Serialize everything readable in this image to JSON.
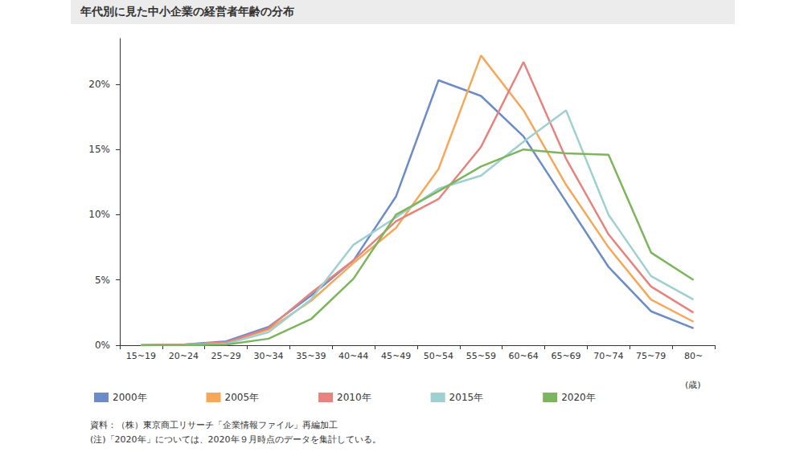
{
  "chart_data": {
    "type": "line",
    "title": "年代別に見た中小企業の経営者年齢の分布",
    "x_label": "(歳)",
    "source": "資料：（株）東京商工リサーチ「企業情報ファイル」再編加工",
    "note": "(注)「2020年」については、2020年９月時点のデータを集計している。",
    "categories": [
      "15~19",
      "20~24",
      "25~29",
      "30~34",
      "35~39",
      "40~44",
      "45~49",
      "50~54",
      "55~59",
      "60~64",
      "65~69",
      "70~74",
      "75~79",
      "80~"
    ],
    "series": [
      {
        "name": "2000年",
        "color": "#6b8cc7",
        "values": [
          0,
          0.05,
          0.3,
          1.4,
          3.8,
          6.5,
          11.4,
          20.3,
          19.1,
          16.0,
          11.0,
          6.0,
          2.6,
          1.3
        ]
      },
      {
        "name": "2005年",
        "color": "#f5a85a",
        "values": [
          0,
          0.05,
          0.2,
          1.2,
          3.4,
          6.3,
          9.0,
          13.5,
          22.2,
          18.0,
          12.3,
          7.5,
          3.5,
          1.8
        ]
      },
      {
        "name": "2010年",
        "color": "#e5847e",
        "values": [
          0,
          0.05,
          0.2,
          1.3,
          4.0,
          6.5,
          9.5,
          11.2,
          15.2,
          21.7,
          14.3,
          8.5,
          4.5,
          2.5
        ]
      },
      {
        "name": "2015年",
        "color": "#9dd0ce",
        "values": [
          0,
          0.02,
          0.1,
          1.0,
          3.5,
          7.7,
          9.8,
          12.0,
          13.0,
          15.6,
          18.0,
          10.0,
          5.3,
          3.5
        ]
      },
      {
        "name": "2020年",
        "color": "#7db55e",
        "values": [
          0,
          0,
          0.05,
          0.5,
          2.0,
          5.1,
          10.0,
          11.8,
          13.7,
          15.0,
          14.7,
          14.6,
          7.1,
          5.0
        ]
      }
    ],
    "ylim": [
      0,
      23.5
    ],
    "yticks": [
      {
        "value": 0,
        "label": "0%"
      },
      {
        "value": 5,
        "label": "5%"
      },
      {
        "value": 10,
        "label": "10%"
      },
      {
        "value": 15,
        "label": "15%"
      },
      {
        "value": 20,
        "label": "20%"
      }
    ],
    "grid": false,
    "legend": "bottom-left"
  }
}
